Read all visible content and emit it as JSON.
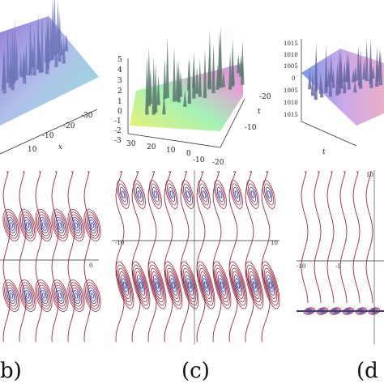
{
  "panels": [
    {
      "id": "b",
      "caption": "b)",
      "surface_ticks": [
        {
          "text": "-30"
        },
        {
          "text": "-20"
        },
        {
          "text": "-10"
        },
        {
          "text": "10"
        },
        {
          "text": "x"
        }
      ],
      "contour_ticks": [
        {
          "text": "0"
        }
      ]
    },
    {
      "id": "c",
      "caption": "(c)",
      "surface_ticks": [
        {
          "text": "5"
        },
        {
          "text": "4"
        },
        {
          "text": "3"
        },
        {
          "text": "2"
        },
        {
          "text": "1"
        },
        {
          "text": "0"
        },
        {
          "text": "-1"
        },
        {
          "text": "-2"
        },
        {
          "text": "-3"
        },
        {
          "text": "30"
        },
        {
          "text": "20"
        },
        {
          "text": "10"
        },
        {
          "text": "0"
        },
        {
          "text": "-10"
        },
        {
          "text": "-20"
        },
        {
          "text": "-20"
        },
        {
          "text": "-10"
        },
        {
          "text": "t"
        }
      ],
      "contour_ticks": [
        {
          "text": "-10"
        },
        {
          "text": "10"
        }
      ]
    },
    {
      "id": "d",
      "caption": "(d",
      "surface_ticks": [
        {
          "text": "1015"
        },
        {
          "text": "1010"
        },
        {
          "text": "1005"
        },
        {
          "text": "0"
        },
        {
          "text": "1005"
        },
        {
          "text": "1010"
        },
        {
          "text": "1015"
        },
        {
          "text": "t"
        }
      ],
      "contour_ticks": [
        {
          "text": "-10"
        },
        {
          "text": "-5"
        },
        {
          "text": "10"
        }
      ]
    }
  ],
  "colors": {
    "contour_outer": "#9a2b40",
    "contour_inner": "#3a3a9a",
    "axis": "#333333"
  }
}
